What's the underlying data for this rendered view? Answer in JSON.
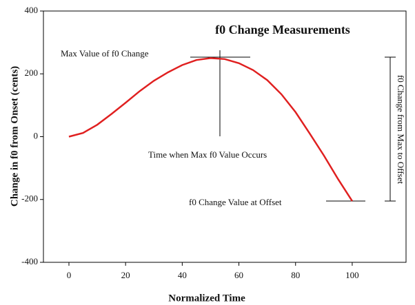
{
  "chart_data": {
    "type": "line",
    "title": "f0 Change Measurements",
    "x_label": "Normalized Time",
    "y_label": "Change in f0 from Onset  (cents)",
    "annotations": [
      "Max Value of f0 Change",
      "Time when Max f0 Value Occurs",
      "f0 Change Value at Offset",
      "f0 Change from Max to Offset"
    ],
    "x": [
      0,
      5,
      10,
      15,
      20,
      25,
      30,
      35,
      40,
      45,
      50,
      55,
      60,
      65,
      70,
      75,
      80,
      85,
      90,
      95,
      100
    ],
    "series": [
      {
        "name": "f0 change",
        "color": "#e02020",
        "values": [
          0,
          12,
          38,
          72,
          108,
          145,
          178,
          205,
          228,
          244,
          250,
          247,
          234,
          212,
          180,
          135,
          78,
          10,
          -60,
          -135,
          -205
        ]
      }
    ],
    "xlim": [
      -9,
      119
    ],
    "xticks": [
      0,
      20,
      40,
      60,
      80,
      100
    ],
    "ylim": [
      -400,
      400
    ],
    "yticks": [
      -400,
      -200,
      0,
      200,
      400
    ]
  }
}
